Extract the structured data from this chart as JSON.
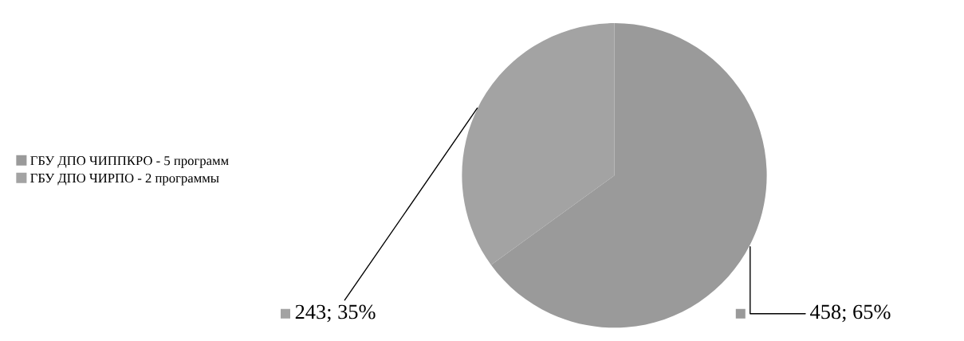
{
  "chart_data": {
    "type": "pie",
    "categories": [
      "ГБУ ДПО ЧИППКРО - 5 программ",
      "ГБУ ДПО ЧИРПО - 2 программы"
    ],
    "values": [
      65,
      35
    ],
    "colors": [
      "#9a9a9a",
      "#a3a3a3"
    ],
    "value_labels": [
      "458; 65%",
      "243; 35%"
    ],
    "legend": "left"
  }
}
